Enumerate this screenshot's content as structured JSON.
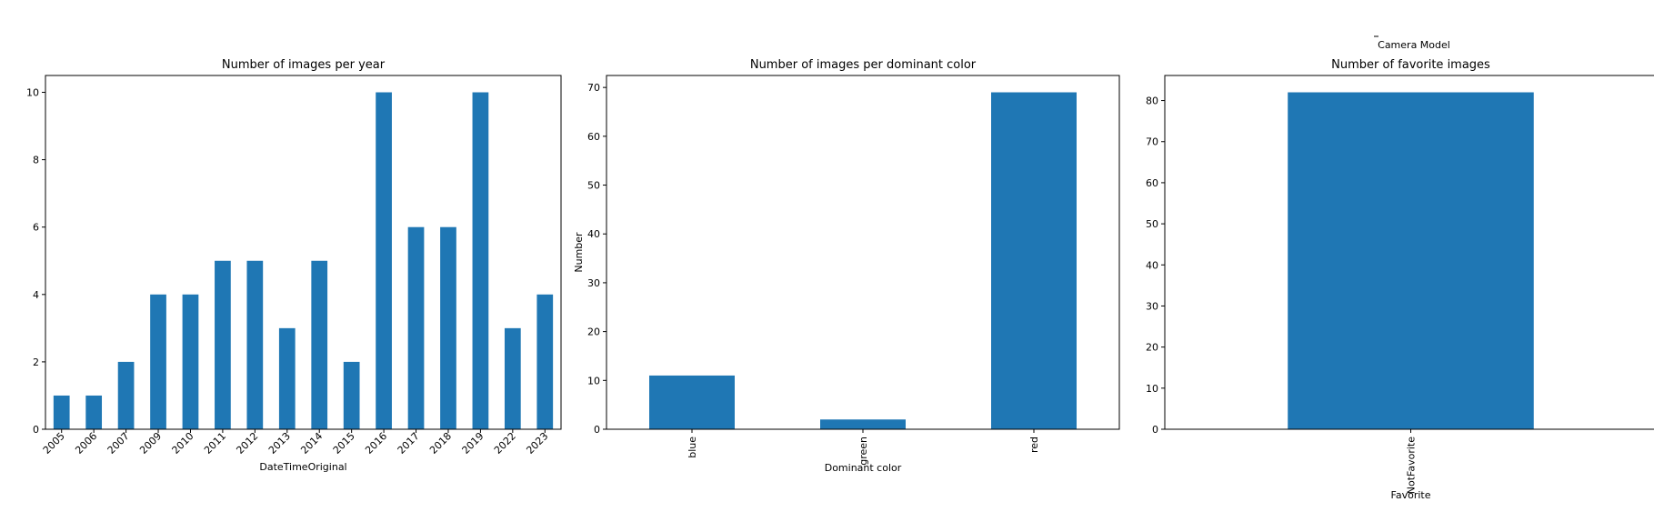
{
  "figure_label": "Camera Model",
  "chart_data": [
    {
      "type": "bar",
      "title": "Number of images per year",
      "xlabel": "DateTimeOriginal",
      "ylabel": "",
      "categories": [
        "2005",
        "2006",
        "2007",
        "2009",
        "2010",
        "2011",
        "2012",
        "2013",
        "2014",
        "2015",
        "2016",
        "2017",
        "2018",
        "2019",
        "2022",
        "2023"
      ],
      "values": [
        1,
        1,
        2,
        4,
        4,
        5,
        5,
        3,
        5,
        2,
        10,
        6,
        6,
        10,
        3,
        4
      ],
      "ylim": [
        0,
        10.5
      ],
      "yticks": [
        0,
        2,
        4,
        6,
        8,
        10
      ],
      "color": "#1f77b4",
      "grid": false
    },
    {
      "type": "bar",
      "title": "Number of images per dominant color",
      "xlabel": "Dominant color",
      "ylabel": "Number",
      "categories": [
        "blue",
        "green",
        "red"
      ],
      "values": [
        11,
        2,
        69
      ],
      "ylim": [
        0,
        72.45
      ],
      "yticks": [
        0,
        10,
        20,
        30,
        40,
        50,
        60,
        70
      ],
      "color": "#1f77b4",
      "grid": false
    },
    {
      "type": "bar",
      "title": "Number of favorite images",
      "xlabel": "Favorite",
      "ylabel": "",
      "categories": [
        "NotFavorite"
      ],
      "values": [
        82
      ],
      "ylim": [
        0,
        86.1
      ],
      "yticks": [
        0,
        10,
        20,
        30,
        40,
        50,
        60,
        70,
        80
      ],
      "color": "#1f77b4",
      "grid": false
    }
  ]
}
